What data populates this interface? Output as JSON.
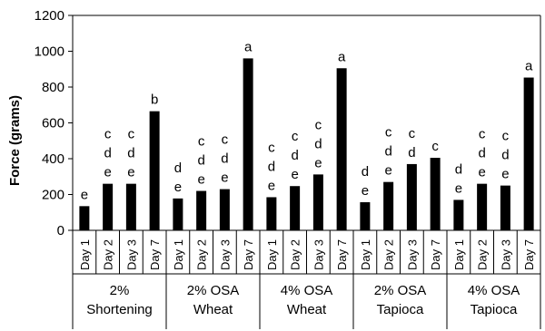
{
  "chart_data": {
    "type": "bar",
    "ylabel": "Force (grams)",
    "ylim": [
      0,
      1200
    ],
    "yticks": [
      0,
      200,
      400,
      600,
      800,
      1000,
      1200
    ],
    "grid": false,
    "legend": "none",
    "bar_color": "#000000",
    "groups": [
      {
        "label_lines": [
          "2%",
          "Shortening"
        ],
        "bars": [
          {
            "day": "Day 1",
            "value": 135,
            "letters": [
              "e"
            ]
          },
          {
            "day": "Day 2",
            "value": 260,
            "letters": [
              "c",
              "d",
              "e"
            ]
          },
          {
            "day": "Day 3",
            "value": 260,
            "letters": [
              "c",
              "d",
              "e"
            ]
          },
          {
            "day": "Day 7",
            "value": 665,
            "letters": [
              "b"
            ]
          }
        ]
      },
      {
        "label_lines": [
          "2% OSA",
          "Wheat"
        ],
        "bars": [
          {
            "day": "Day 1",
            "value": 178,
            "letters": [
              "d",
              "e"
            ]
          },
          {
            "day": "Day 2",
            "value": 220,
            "letters": [
              "c",
              "d",
              "e"
            ]
          },
          {
            "day": "Day 3",
            "value": 230,
            "letters": [
              "c",
              "d",
              "e"
            ]
          },
          {
            "day": "Day 7",
            "value": 960,
            "letters": [
              "a"
            ]
          }
        ]
      },
      {
        "label_lines": [
          "4% OSA",
          "Wheat"
        ],
        "bars": [
          {
            "day": "Day 1",
            "value": 185,
            "letters": [
              "c",
              "d",
              "e"
            ]
          },
          {
            "day": "Day 2",
            "value": 247,
            "letters": [
              "c",
              "d",
              "e"
            ]
          },
          {
            "day": "Day 3",
            "value": 312,
            "letters": [
              "c",
              "d",
              "e"
            ]
          },
          {
            "day": "Day 7",
            "value": 905,
            "letters": [
              "a"
            ]
          }
        ]
      },
      {
        "label_lines": [
          "2% OSA",
          "Tapioca"
        ],
        "bars": [
          {
            "day": "Day 1",
            "value": 157,
            "letters": [
              "d",
              "e"
            ]
          },
          {
            "day": "Day 2",
            "value": 270,
            "letters": [
              "c",
              "d",
              "e"
            ]
          },
          {
            "day": "Day 3",
            "value": 370,
            "letters": [
              "c",
              "d"
            ]
          },
          {
            "day": "Day 7",
            "value": 405,
            "letters": [
              "c"
            ]
          }
        ]
      },
      {
        "label_lines": [
          "4% OSA",
          "Tapioca"
        ],
        "bars": [
          {
            "day": "Day 1",
            "value": 170,
            "letters": [
              "d",
              "e"
            ]
          },
          {
            "day": "Day 2",
            "value": 260,
            "letters": [
              "c",
              "d",
              "e"
            ]
          },
          {
            "day": "Day 3",
            "value": 250,
            "letters": [
              "c",
              "d",
              "e"
            ]
          },
          {
            "day": "Day 7",
            "value": 853,
            "letters": [
              "a"
            ]
          }
        ]
      }
    ]
  }
}
